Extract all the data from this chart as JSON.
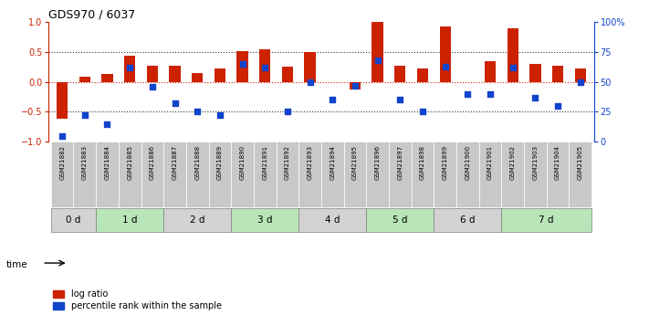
{
  "title": "GDS970 / 6037",
  "samples": [
    "GSM21882",
    "GSM21883",
    "GSM21884",
    "GSM21885",
    "GSM21886",
    "GSM21887",
    "GSM21888",
    "GSM21889",
    "GSM21890",
    "GSM21891",
    "GSM21892",
    "GSM21893",
    "GSM21894",
    "GSM21895",
    "GSM21896",
    "GSM21897",
    "GSM21898",
    "GSM21899",
    "GSM21900",
    "GSM21901",
    "GSM21902",
    "GSM21903",
    "GSM21904",
    "GSM21905"
  ],
  "log_ratio": [
    -0.62,
    0.08,
    0.13,
    0.44,
    0.27,
    0.27,
    0.15,
    0.22,
    0.52,
    0.55,
    0.25,
    0.5,
    0.0,
    -0.12,
    1.0,
    0.27,
    0.22,
    0.92,
    0.0,
    0.35,
    0.9,
    0.3,
    0.27,
    0.22
  ],
  "percentile": [
    5,
    22,
    15,
    62,
    46,
    32,
    25,
    22,
    65,
    62,
    25,
    50,
    35,
    47,
    68,
    35,
    25,
    63,
    40,
    40,
    62,
    37,
    30,
    50
  ],
  "time_groups": [
    {
      "label": "0 d",
      "start": 0,
      "end": 1,
      "color": "#d3d3d3"
    },
    {
      "label": "1 d",
      "start": 2,
      "end": 4,
      "color": "#b8e6b8"
    },
    {
      "label": "2 d",
      "start": 5,
      "end": 7,
      "color": "#d3d3d3"
    },
    {
      "label": "3 d",
      "start": 8,
      "end": 10,
      "color": "#b8e6b8"
    },
    {
      "label": "4 d",
      "start": 11,
      "end": 13,
      "color": "#d3d3d3"
    },
    {
      "label": "5 d",
      "start": 14,
      "end": 16,
      "color": "#b8e6b8"
    },
    {
      "label": "6 d",
      "start": 17,
      "end": 19,
      "color": "#d3d3d3"
    },
    {
      "label": "7 d",
      "start": 20,
      "end": 23,
      "color": "#b8e6b8"
    }
  ],
  "bar_color": "#cc2200",
  "dot_color": "#1144cc",
  "ylim_left": [
    -1.0,
    1.0
  ],
  "ylim_right": [
    0,
    100
  ],
  "yticks_left": [
    -1.0,
    -0.5,
    0.0,
    0.5,
    1.0
  ],
  "yticks_right": [
    0,
    25,
    50,
    75,
    100
  ],
  "yticklabels_right": [
    "0",
    "25",
    "50",
    "75",
    "100%"
  ],
  "hline_colors": {
    "0.0": "#cc2200",
    "-0.5": "#333333",
    "0.5": "#333333"
  },
  "legend_log_ratio": "log ratio",
  "legend_percentile": "percentile rank within the sample",
  "time_label": "time",
  "sample_box_color": "#c8c8c8",
  "background_color": "#ffffff"
}
